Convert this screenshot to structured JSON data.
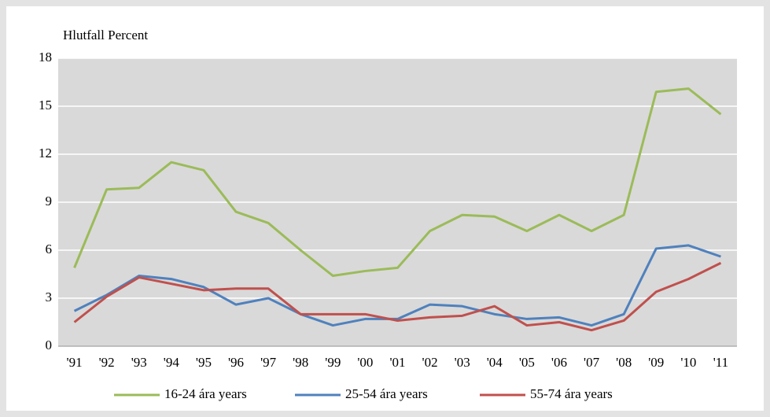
{
  "chart_data": {
    "type": "line",
    "ylabel": "Hlutfall Percent",
    "categories": [
      "'91",
      "'92",
      "'93",
      "'94",
      "'95",
      "'96",
      "'97",
      "'98",
      "'99",
      "'00",
      "'01",
      "'02",
      "'03",
      "'04",
      "'05",
      "'06",
      "'07",
      "'08",
      "'09",
      "'10",
      "'11"
    ],
    "series": [
      {
        "name": "16-24 ára years",
        "color": "#9bbb59",
        "values": [
          4.9,
          9.8,
          9.9,
          11.5,
          11.0,
          8.4,
          7.7,
          6.0,
          4.4,
          4.7,
          4.9,
          7.2,
          8.2,
          8.1,
          7.2,
          8.2,
          7.2,
          8.2,
          15.9,
          16.1,
          14.5
        ]
      },
      {
        "name": "25-54 ára years",
        "color": "#4f81bd",
        "values": [
          2.2,
          3.2,
          4.4,
          4.2,
          3.7,
          2.6,
          3.0,
          2.0,
          1.3,
          1.7,
          1.7,
          2.6,
          2.5,
          2.0,
          1.7,
          1.8,
          1.3,
          2.0,
          6.1,
          6.3,
          5.6
        ]
      },
      {
        "name": "55-74 ára years",
        "color": "#c0504d",
        "values": [
          1.5,
          3.1,
          4.3,
          3.9,
          3.5,
          3.6,
          3.6,
          2.0,
          2.0,
          2.0,
          1.6,
          1.8,
          1.9,
          2.5,
          1.3,
          1.5,
          1.0,
          1.6,
          3.4,
          4.2,
          5.2
        ]
      }
    ],
    "ylim": [
      0,
      18
    ],
    "yticks": [
      0,
      3,
      6,
      9,
      12,
      15,
      18
    ],
    "grid": true,
    "legend": "bottom"
  }
}
